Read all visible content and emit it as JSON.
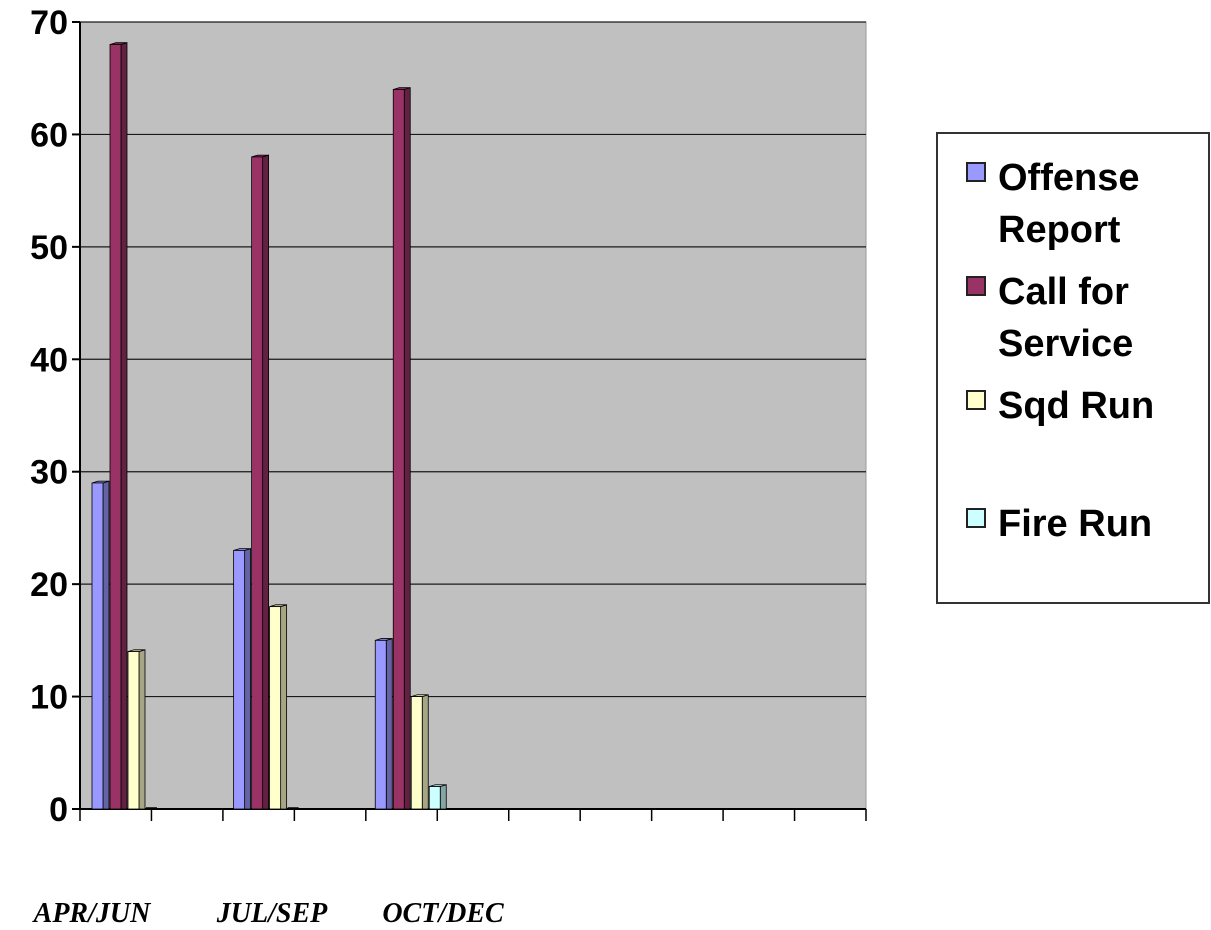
{
  "chart_data": {
    "type": "bar",
    "categories": [
      "APR/JUN",
      "JUL/SEP",
      "OCT/DEC"
    ],
    "series": [
      {
        "name": "Offense Report",
        "values": [
          29,
          23,
          15
        ],
        "color": "#9999ff"
      },
      {
        "name": "Call for Service",
        "values": [
          68,
          58,
          64
        ],
        "color": "#993366"
      },
      {
        "name": "Sqd Run",
        "values": [
          14,
          18,
          10
        ],
        "color": "#ffffcc"
      },
      {
        "name": "Fire Run",
        "values": [
          0,
          0,
          2
        ],
        "color": "#ccffff"
      }
    ],
    "ylim": [
      0,
      70
    ],
    "yticks": [
      "0",
      "10",
      "20",
      "30",
      "40",
      "50",
      "60",
      "70"
    ],
    "grid": true,
    "legend_position": "right",
    "plot_background": "#c0c0c0"
  }
}
